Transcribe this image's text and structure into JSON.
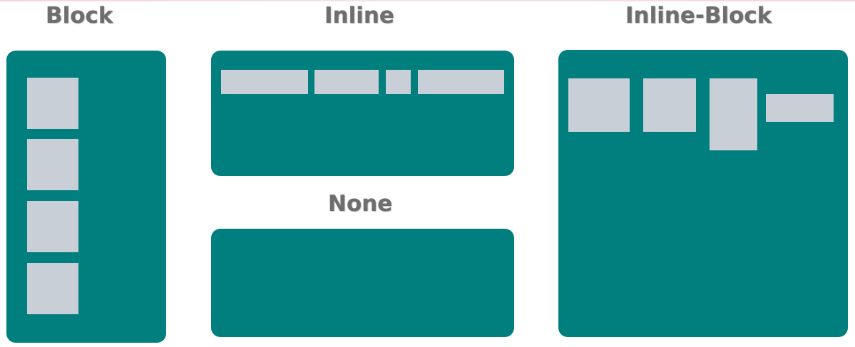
{
  "titles": {
    "block": "Block",
    "inline": "Inline",
    "none": "None",
    "inline_block": "Inline-Block"
  },
  "colors": {
    "panel": "#017e7e",
    "box": "#c8cfd6",
    "title": "#6e6e6e",
    "background": "#ffffff"
  }
}
